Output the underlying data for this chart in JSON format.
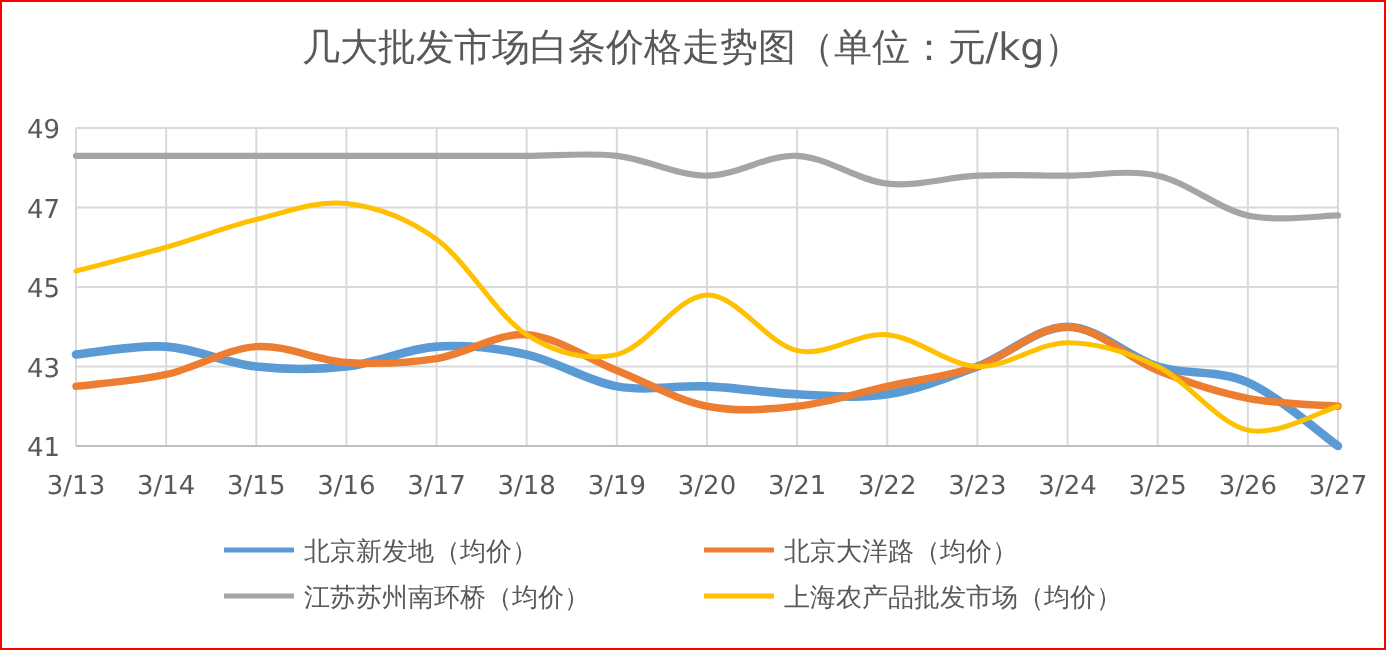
{
  "chart_data": {
    "type": "line",
    "title": "几大批发市场白条价格走势图（单位：元/kg）",
    "categories": [
      "3/13",
      "3/14",
      "3/15",
      "3/16",
      "3/17",
      "3/18",
      "3/19",
      "3/20",
      "3/21",
      "3/22",
      "3/23",
      "3/24",
      "3/25",
      "3/26",
      "3/27"
    ],
    "series": [
      {
        "name": "北京新发地（均价）",
        "color": "#5b9bd5",
        "values": [
          43.3,
          43.5,
          43.0,
          43.0,
          43.5,
          43.3,
          42.5,
          42.5,
          42.3,
          42.3,
          43.0,
          44.0,
          43.0,
          42.6,
          41.0
        ]
      },
      {
        "name": "北京大洋路（均价）",
        "color": "#ed7d31",
        "values": [
          42.5,
          42.8,
          43.5,
          43.1,
          43.2,
          43.8,
          42.9,
          42.0,
          42.0,
          42.5,
          43.0,
          44.0,
          42.9,
          42.2,
          42.0
        ]
      },
      {
        "name": "江苏苏州南环桥（均价）",
        "color": "#a5a5a5",
        "values": [
          48.3,
          48.3,
          48.3,
          48.3,
          48.3,
          48.3,
          48.3,
          47.8,
          48.3,
          47.6,
          47.8,
          47.8,
          47.8,
          46.8,
          46.8
        ]
      },
      {
        "name": "上海农产品批发市场（均价）",
        "color": "#ffc000",
        "values": [
          45.4,
          46.0,
          46.7,
          47.1,
          46.2,
          43.8,
          43.3,
          44.8,
          43.4,
          43.8,
          43.0,
          43.6,
          43.0,
          41.4,
          42.0
        ]
      }
    ],
    "ylim": [
      41,
      49
    ],
    "yticks": [
      41,
      43,
      45,
      47,
      49
    ],
    "grid": true,
    "legend": "bottom"
  }
}
